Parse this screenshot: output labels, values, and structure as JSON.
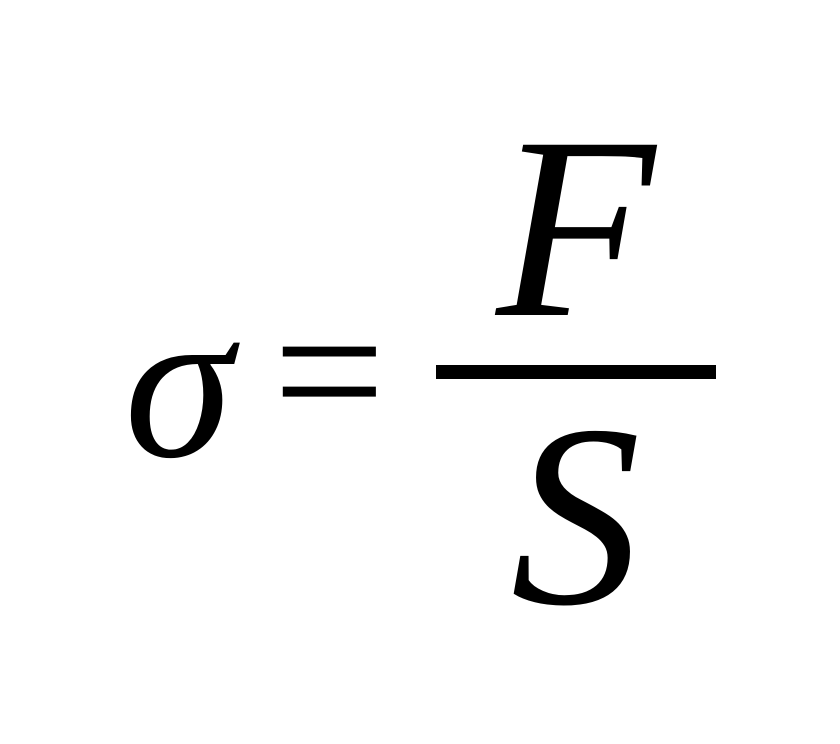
{
  "formula": {
    "type": "equation",
    "lhs": "σ",
    "operator": "=",
    "rhs": {
      "type": "fraction",
      "numerator": "F",
      "denominator": "S"
    },
    "font_family": "Times New Roman",
    "font_style": "italic",
    "text_color": "#000000",
    "background": "transparent",
    "lhs_fontsize": 220,
    "operator_fontsize": 200,
    "fraction_fontsize": 260,
    "fraction_bar_width": 280,
    "fraction_bar_thickness": 14
  }
}
